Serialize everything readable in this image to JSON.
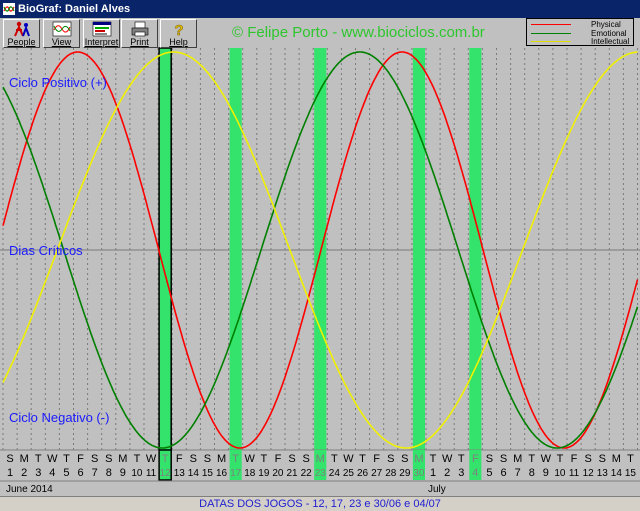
{
  "window": {
    "title": "BioGraf: Daniel Alves"
  },
  "toolbar": {
    "buttons": [
      {
        "id": "people",
        "label": "People",
        "icon": "people-icon"
      },
      {
        "id": "view",
        "label": "View",
        "icon": "view-icon"
      },
      {
        "id": "interpret",
        "label": "Interpret",
        "icon": "interpret-icon"
      },
      {
        "id": "print",
        "label": "Print",
        "icon": "print-icon"
      },
      {
        "id": "help",
        "label": "Help",
        "icon": "help-icon"
      }
    ]
  },
  "credit": "© Felipe Porto - www.biociclos.com.br",
  "legend": {
    "physical": "Physical",
    "emotional": "Emotional",
    "intellectual": "Intellectual"
  },
  "bands": {
    "positive": "Ciclo Positivo (+)",
    "critical": "Dias Críticos",
    "negative": "Ciclo Negativo (-)"
  },
  "months": {
    "first": "June 2014",
    "second": "July"
  },
  "footer": "DATAS DOS JOGOS - 12, 17, 23 e 30/06 e 04/07",
  "colors": {
    "physical": "#ff0000",
    "emotional": "#008000",
    "intellectual": "#ffff00",
    "highlight": "#33e36b",
    "band_text": "#1a1aff"
  },
  "chart_data": {
    "type": "line",
    "x": [
      1,
      2,
      3,
      4,
      5,
      6,
      7,
      8,
      9,
      10,
      11,
      12,
      13,
      14,
      15,
      16,
      17,
      18,
      19,
      20,
      21,
      22,
      23,
      24,
      25,
      26,
      27,
      28,
      29,
      30,
      1,
      2,
      3,
      4,
      5,
      6,
      7,
      8,
      9,
      10,
      11,
      12,
      13,
      14,
      15
    ],
    "weekdays": [
      "S",
      "M",
      "T",
      "W",
      "T",
      "F",
      "S",
      "S",
      "M",
      "T",
      "W",
      "T",
      "F",
      "S",
      "S",
      "M",
      "T",
      "W",
      "T",
      "F",
      "S",
      "S",
      "M",
      "T",
      "W",
      "T",
      "F",
      "S",
      "S",
      "M",
      "T",
      "W",
      "T",
      "F",
      "S",
      "S",
      "M",
      "T",
      "W",
      "T",
      "F",
      "S",
      "S",
      "M",
      "T"
    ],
    "highlight_indices": [
      11,
      16,
      22,
      29,
      33
    ],
    "selected_index": 11,
    "series": [
      {
        "name": "Physical",
        "cycle_days": 23,
        "peak_day_index": 27.8
      },
      {
        "name": "Emotional",
        "cycle_days": 28,
        "peak_day_index": 24.8
      },
      {
        "name": "Intellectual",
        "cycle_days": 33,
        "peak_day_index": 11.6
      }
    ],
    "ylim": [
      -1,
      1
    ]
  }
}
